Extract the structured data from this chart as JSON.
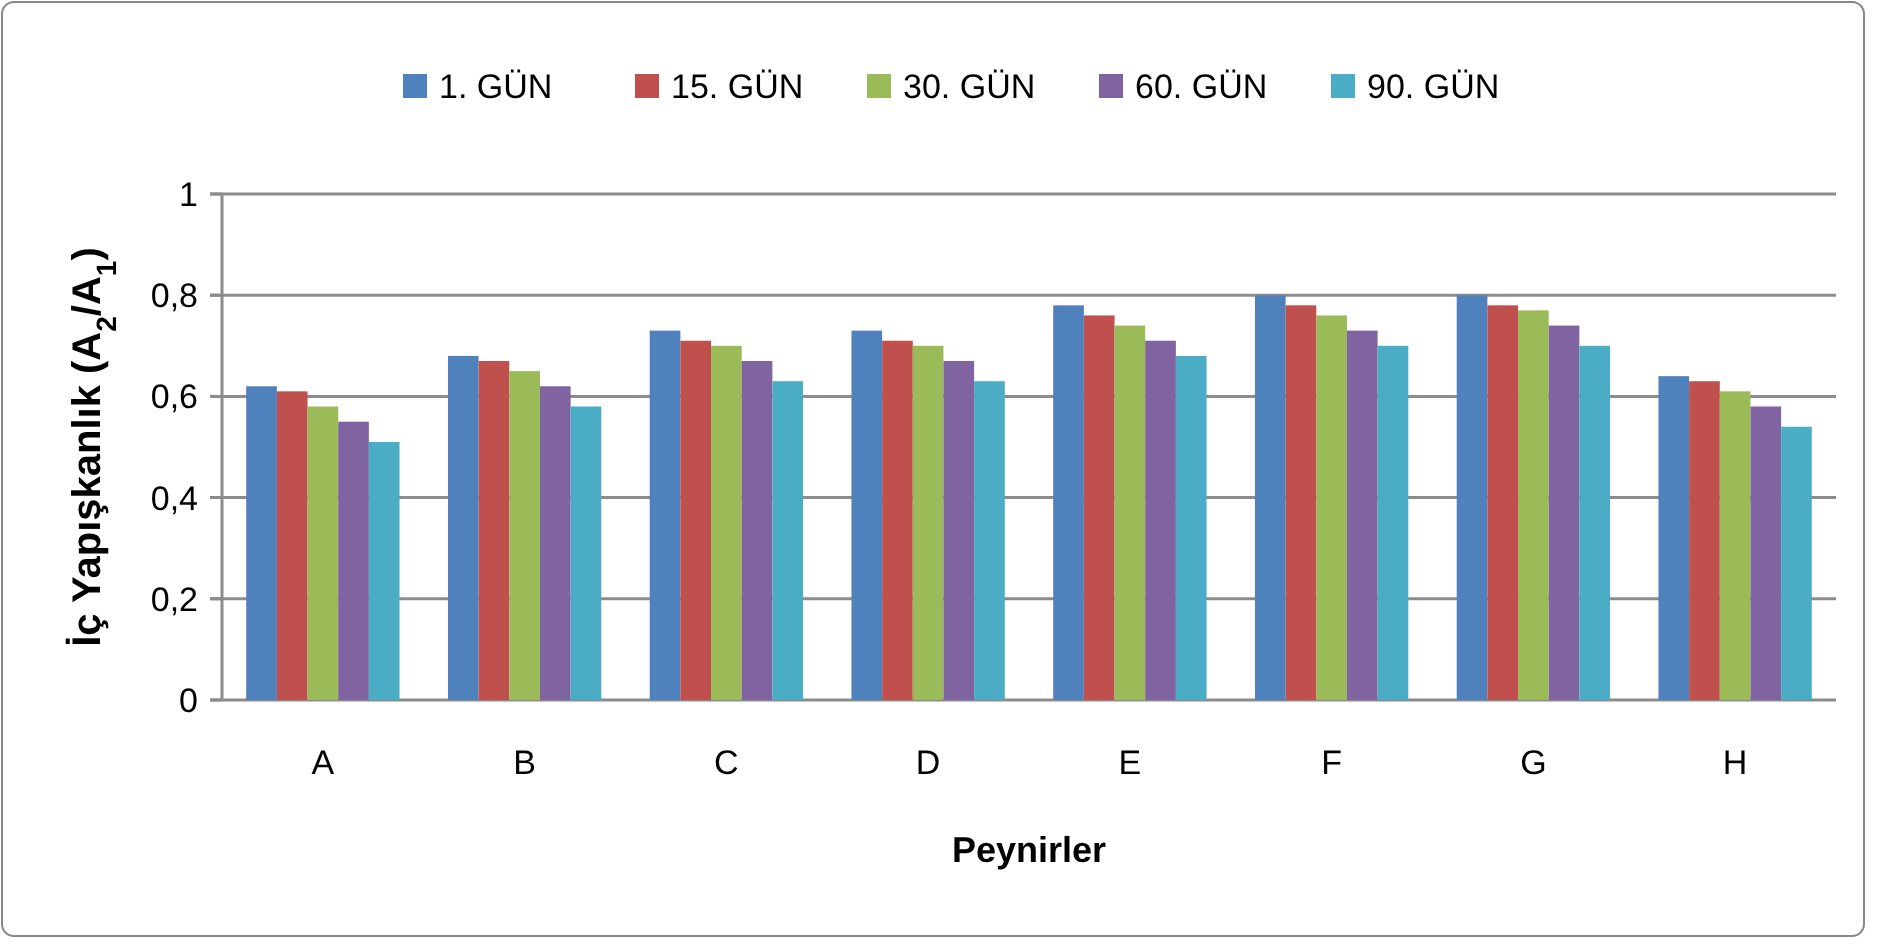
{
  "chart_data": {
    "type": "bar",
    "xlabel": "Peynirler",
    "ylabel": "İç Yapışkanlık (A$_{2}$/A$_{1}$)",
    "categories": [
      "A",
      "B",
      "C",
      "D",
      "E",
      "F",
      "G",
      "H"
    ],
    "series": [
      {
        "name": "1. GÜN",
        "color": "#4f81bd",
        "values": [
          0.62,
          0.68,
          0.73,
          0.73,
          0.78,
          0.8,
          0.8,
          0.64
        ]
      },
      {
        "name": "15. GÜN",
        "color": "#c0504d",
        "values": [
          0.61,
          0.67,
          0.71,
          0.71,
          0.76,
          0.78,
          0.78,
          0.63
        ]
      },
      {
        "name": "30. GÜN",
        "color": "#9bbb59",
        "values": [
          0.58,
          0.65,
          0.7,
          0.7,
          0.74,
          0.76,
          0.77,
          0.61
        ]
      },
      {
        "name": "60. GÜN",
        "color": "#8064a2",
        "values": [
          0.55,
          0.62,
          0.67,
          0.67,
          0.71,
          0.73,
          0.74,
          0.58
        ]
      },
      {
        "name": "90. GÜN",
        "color": "#4bacc6",
        "values": [
          0.51,
          0.58,
          0.63,
          0.63,
          0.68,
          0.7,
          0.7,
          0.54
        ]
      }
    ],
    "ylim": [
      0,
      1
    ],
    "yticks": [
      0,
      {
        "value": 0.2,
        "label": "0,2"
      },
      {
        "value": 0.4,
        "label": "0,4"
      },
      {
        "value": 0.6,
        "label": "0,6"
      },
      {
        "value": 0.8,
        "label": "0,8"
      },
      1
    ],
    "grid": "y",
    "legend": "top"
  }
}
